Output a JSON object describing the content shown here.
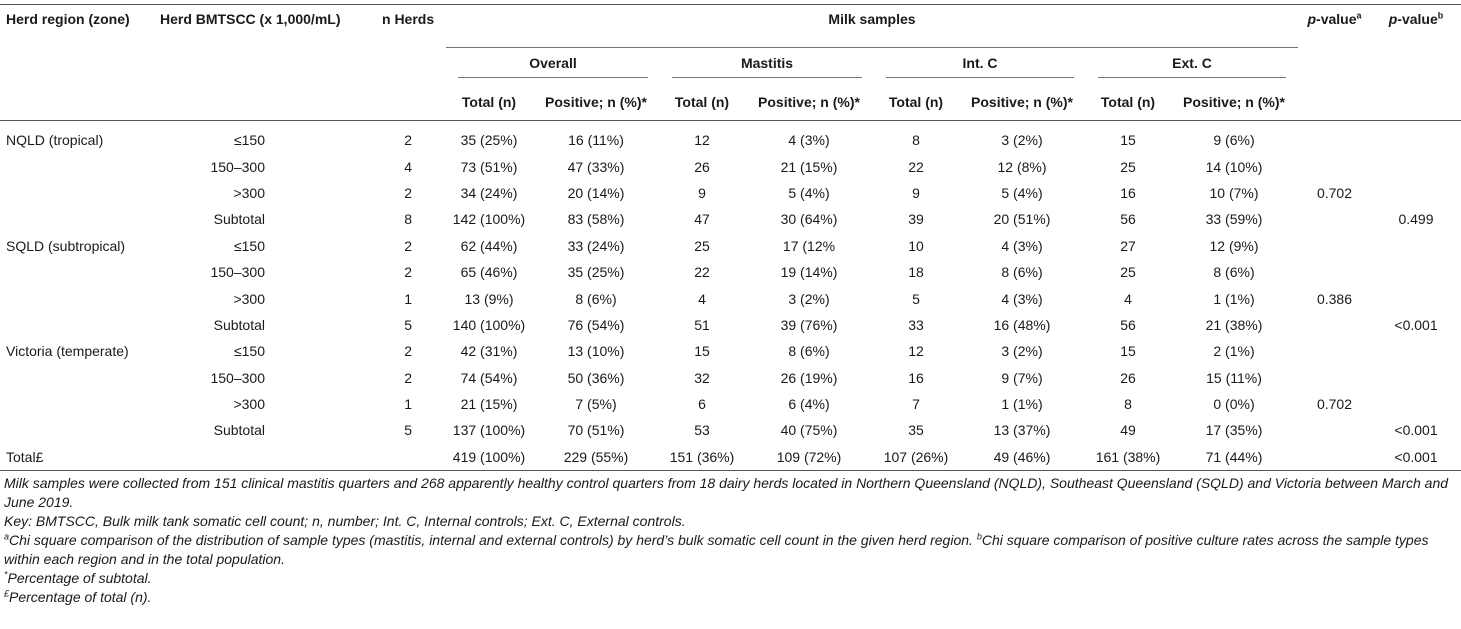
{
  "headers": {
    "region": "Herd region (zone)",
    "bmtscc": "Herd BMTSCC (x 1,000/mL)",
    "n_herds": "n Herds",
    "milk_samples": "Milk samples",
    "pvalue_a": {
      "italic": "p",
      "rest": "-value",
      "sup": "a"
    },
    "pvalue_b": {
      "italic": "p",
      "rest": "-value",
      "sup": "b"
    },
    "groups": [
      "Overall",
      "Mastitis",
      "Int. C",
      "Ext. C"
    ],
    "sub": [
      "Total (n)",
      "Positive; n (%)*",
      "Total (n)",
      "Positive; n (%)*",
      "Total (n)",
      "Positive; n (%)*",
      "Total (n)",
      "Positive; n (%)*"
    ]
  },
  "rows": [
    {
      "region": "NQLD (tropical)",
      "scc": "≤150",
      "n": "2",
      "c": [
        "35 (25%)",
        "16 (11%)",
        "12",
        "4 (3%)",
        "8",
        "3 (2%)",
        "15",
        "9 (6%)"
      ],
      "pa": "",
      "pb": ""
    },
    {
      "region": "",
      "scc": "150–300",
      "n": "4",
      "c": [
        "73 (51%)",
        "47 (33%)",
        "26",
        "21 (15%)",
        "22",
        "12 (8%)",
        "25",
        "14 (10%)"
      ],
      "pa": "",
      "pb": ""
    },
    {
      "region": "",
      "scc": ">300",
      "n": "2",
      "c": [
        "34 (24%)",
        "20 (14%)",
        "9",
        "5 (4%)",
        "9",
        "5 (4%)",
        "16",
        "10 (7%)"
      ],
      "pa": "0.702",
      "pb": ""
    },
    {
      "region": "",
      "scc": "Subtotal",
      "n": "8",
      "c": [
        "142 (100%)",
        "83 (58%)",
        "47",
        "30 (64%)",
        "39",
        "20 (51%)",
        "56",
        "33 (59%)"
      ],
      "pa": "",
      "pb": "0.499"
    },
    {
      "region": "SQLD (subtropical)",
      "scc": "≤150",
      "n": "2",
      "c": [
        "62 (44%)",
        "33 (24%)",
        "25",
        "17 (12%",
        "10",
        "4 (3%)",
        "27",
        "12 (9%)"
      ],
      "pa": "",
      "pb": ""
    },
    {
      "region": "",
      "scc": "150–300",
      "n": "2",
      "c": [
        "65 (46%)",
        "35 (25%)",
        "22",
        "19 (14%)",
        "18",
        "8 (6%)",
        "25",
        "8 (6%)"
      ],
      "pa": "",
      "pb": ""
    },
    {
      "region": "",
      "scc": ">300",
      "n": "1",
      "c": [
        "13 (9%)",
        "8 (6%)",
        "4",
        "3 (2%)",
        "5",
        "4 (3%)",
        "4",
        "1 (1%)"
      ],
      "pa": "0.386",
      "pb": ""
    },
    {
      "region": "",
      "scc": "Subtotal",
      "n": "5",
      "c": [
        "140 (100%)",
        "76 (54%)",
        "51",
        "39 (76%)",
        "33",
        "16 (48%)",
        "56",
        "21 (38%)"
      ],
      "pa": "",
      "pb": "<0.001"
    },
    {
      "region": "Victoria (temperate)",
      "scc": "≤150",
      "n": "2",
      "c": [
        "42 (31%)",
        "13 (10%)",
        "15",
        "8 (6%)",
        "12",
        "3 (2%)",
        "15",
        "2 (1%)"
      ],
      "pa": "",
      "pb": ""
    },
    {
      "region": "",
      "scc": "150–300",
      "n": "2",
      "c": [
        "74 (54%)",
        "50 (36%)",
        "32",
        "26 (19%)",
        "16",
        "9 (7%)",
        "26",
        "15 (11%)"
      ],
      "pa": "",
      "pb": ""
    },
    {
      "region": "",
      "scc": ">300",
      "n": "1",
      "c": [
        "21 (15%)",
        "7 (5%)",
        "6",
        "6 (4%)",
        "7",
        "1 (1%)",
        "8",
        "0 (0%)"
      ],
      "pa": "0.702",
      "pb": ""
    },
    {
      "region": "",
      "scc": "Subtotal",
      "n": "5",
      "c": [
        "137 (100%)",
        "70 (51%)",
        "53",
        "40 (75%)",
        "35",
        "13 (37%)",
        "49",
        "17 (35%)"
      ],
      "pa": "",
      "pb": "<0.001"
    },
    {
      "region": "Total£",
      "scc": "",
      "n": "",
      "c": [
        "419 (100%)",
        "229 (55%)",
        "151 (36%)",
        "109 (72%)",
        "107 (26%)",
        "49 (46%)",
        "161 (38%)",
        "71 (44%)"
      ],
      "pa": "",
      "pb": "<0.001"
    }
  ],
  "notes": {
    "n1": "Milk samples were collected from 151 clinical mastitis quarters and 268 apparently healthy control quarters from 18 dairy herds located in Northern Queensland (NQLD), Southeast Queensland (SQLD) and Victoria between March and June 2019.",
    "n2": "Key: BMTSCC, Bulk milk tank somatic cell count; n, number; Int. C, Internal controls; Ext. C, External controls.",
    "n3_sup": "a",
    "n3_text": "Chi square comparison of the distribution of sample types (mastitis, internal and external controls) by herd’s bulk somatic cell count in the given herd region. ",
    "n3b_sup": "b",
    "n3b_text": "Chi square comparison of positive culture rates across the sample types within each region and in the total population.",
    "n4_sup": "*",
    "n4_text": "Percentage of subtotal.",
    "n5_sup": "£",
    "n5_text": "Percentage of total (n)."
  }
}
